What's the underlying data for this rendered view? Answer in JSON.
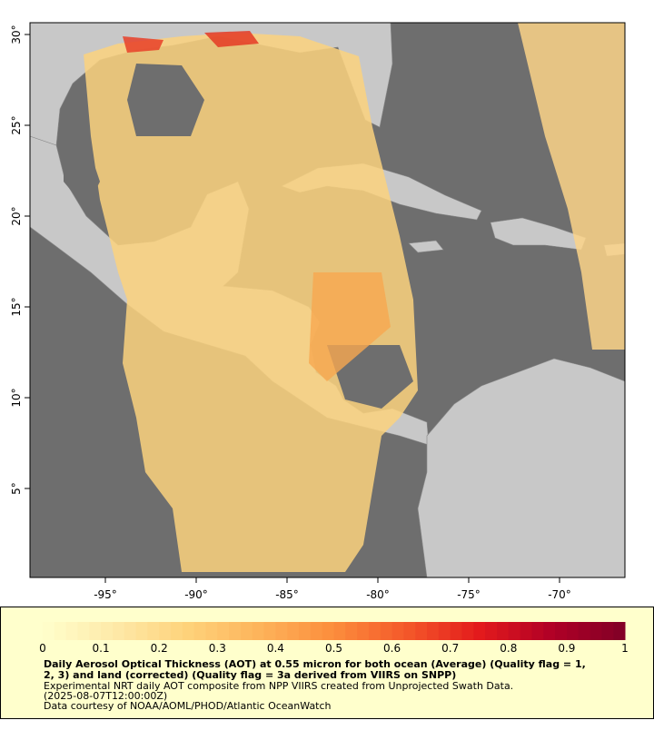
{
  "map": {
    "lon_ticks": [
      "-95°",
      "-90°",
      "-85°",
      "-80°",
      "-75°",
      "-70°"
    ],
    "lat_ticks": [
      "30°",
      "25°",
      "20°",
      "15°",
      "10°",
      "5°"
    ]
  },
  "colorbar": {
    "ticks": [
      0,
      0.1,
      0.2,
      0.3,
      0.4,
      0.5,
      0.6,
      0.7,
      0.8,
      0.9,
      1
    ],
    "colors": [
      "#ffffcc",
      "#fee9a8",
      "#fed27a",
      "#fdb35a",
      "#fc8d3c",
      "#f4582a",
      "#e31a1c",
      "#b00026",
      "#800026"
    ]
  },
  "caption": {
    "title_line1": "Daily Aerosol Optical Thickness (AOT) at 0.55 micron for both ocean (Average) (Quality flag = 1,",
    "title_line2": "2, 3) and land (corrected) (Quality flag = 3a derived from VIIRS on SNPP)",
    "description": "Experimental NRT daily AOT composite from NPP VIIRS created from Unprojected Swath Data.",
    "timestamp": "(2025-08-07T12:00:00Z)",
    "credit": "Data courtesy of NOAA/AOML/PHOD/Atlantic OceanWatch"
  }
}
